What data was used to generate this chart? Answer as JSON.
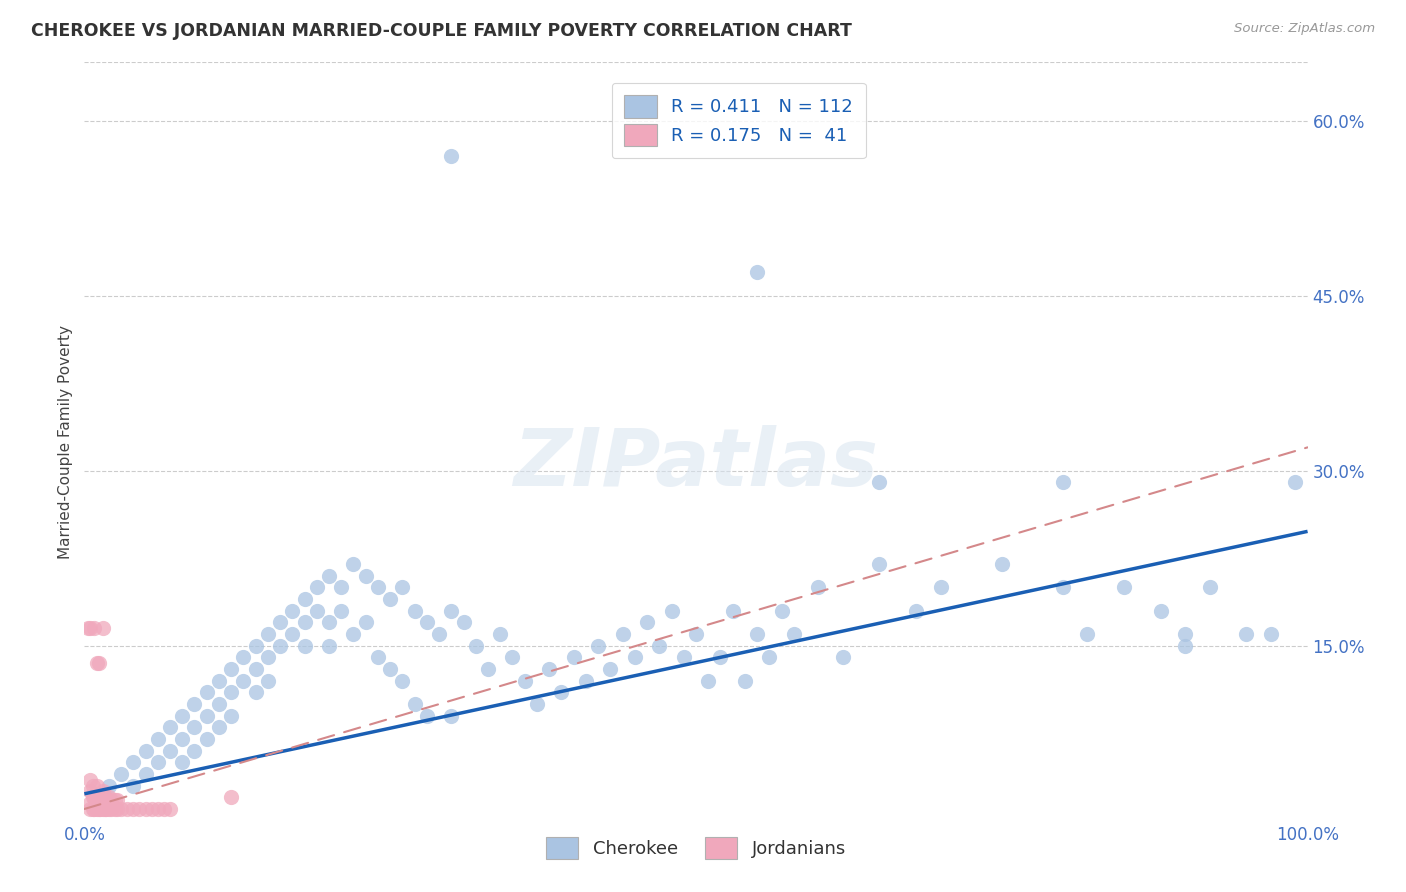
{
  "title": "CHEROKEE VS JORDANIAN MARRIED-COUPLE FAMILY POVERTY CORRELATION CHART",
  "source": "Source: ZipAtlas.com",
  "ylabel": "Married-Couple Family Poverty",
  "xlim": [
    0,
    1.0
  ],
  "ylim": [
    0,
    0.65
  ],
  "xticks": [
    0.0,
    0.2,
    0.4,
    0.6,
    0.8,
    1.0
  ],
  "xticklabels": [
    "0.0%",
    "",
    "",
    "",
    "",
    "100.0%"
  ],
  "yticks_right": [
    0.15,
    0.3,
    0.45,
    0.6
  ],
  "yticklabels_right": [
    "15.0%",
    "30.0%",
    "45.0%",
    "60.0%"
  ],
  "cherokee_color": "#aac4e2",
  "jordanian_color": "#f0a8bc",
  "cherokee_line_color": "#1a5fb4",
  "jordanian_line_color": "#d4888a",
  "tick_color": "#4472c4",
  "watermark_text": "ZIPatlas",
  "legend_cherokee_label": "R = 0.411   N = 112",
  "legend_jordanian_label": "R = 0.175   N =  41",
  "bottom_legend_cherokee": "Cherokee",
  "bottom_legend_jordanian": "Jordanians",
  "cherokee_x": [
    0.02,
    0.03,
    0.04,
    0.04,
    0.05,
    0.05,
    0.06,
    0.06,
    0.07,
    0.07,
    0.08,
    0.08,
    0.08,
    0.09,
    0.09,
    0.09,
    0.1,
    0.1,
    0.1,
    0.11,
    0.11,
    0.11,
    0.12,
    0.12,
    0.12,
    0.13,
    0.13,
    0.14,
    0.14,
    0.14,
    0.15,
    0.15,
    0.15,
    0.16,
    0.16,
    0.17,
    0.17,
    0.18,
    0.18,
    0.18,
    0.19,
    0.19,
    0.2,
    0.2,
    0.2,
    0.21,
    0.21,
    0.22,
    0.22,
    0.23,
    0.23,
    0.24,
    0.24,
    0.25,
    0.25,
    0.26,
    0.26,
    0.27,
    0.27,
    0.28,
    0.28,
    0.29,
    0.3,
    0.3,
    0.31,
    0.32,
    0.33,
    0.34,
    0.35,
    0.36,
    0.37,
    0.38,
    0.39,
    0.4,
    0.41,
    0.42,
    0.43,
    0.44,
    0.45,
    0.46,
    0.47,
    0.48,
    0.49,
    0.5,
    0.51,
    0.52,
    0.53,
    0.54,
    0.55,
    0.56,
    0.57,
    0.58,
    0.6,
    0.62,
    0.65,
    0.68,
    0.7,
    0.75,
    0.8,
    0.82,
    0.85,
    0.88,
    0.9,
    0.92,
    0.95,
    0.97,
    0.99,
    0.3,
    0.55,
    0.65,
    0.8,
    0.9
  ],
  "cherokee_y": [
    0.03,
    0.04,
    0.05,
    0.03,
    0.06,
    0.04,
    0.07,
    0.05,
    0.08,
    0.06,
    0.09,
    0.07,
    0.05,
    0.1,
    0.08,
    0.06,
    0.11,
    0.09,
    0.07,
    0.12,
    0.1,
    0.08,
    0.13,
    0.11,
    0.09,
    0.14,
    0.12,
    0.15,
    0.13,
    0.11,
    0.16,
    0.14,
    0.12,
    0.17,
    0.15,
    0.18,
    0.16,
    0.19,
    0.17,
    0.15,
    0.2,
    0.18,
    0.21,
    0.17,
    0.15,
    0.2,
    0.18,
    0.22,
    0.16,
    0.21,
    0.17,
    0.2,
    0.14,
    0.19,
    0.13,
    0.2,
    0.12,
    0.18,
    0.1,
    0.17,
    0.09,
    0.16,
    0.18,
    0.09,
    0.17,
    0.15,
    0.13,
    0.16,
    0.14,
    0.12,
    0.1,
    0.13,
    0.11,
    0.14,
    0.12,
    0.15,
    0.13,
    0.16,
    0.14,
    0.17,
    0.15,
    0.18,
    0.14,
    0.16,
    0.12,
    0.14,
    0.18,
    0.12,
    0.16,
    0.14,
    0.18,
    0.16,
    0.2,
    0.14,
    0.22,
    0.18,
    0.2,
    0.22,
    0.2,
    0.16,
    0.2,
    0.18,
    0.16,
    0.2,
    0.16,
    0.16,
    0.29,
    0.57,
    0.47,
    0.29,
    0.29,
    0.15
  ],
  "jordanian_x": [
    0.005,
    0.005,
    0.005,
    0.005,
    0.007,
    0.007,
    0.007,
    0.008,
    0.008,
    0.01,
    0.01,
    0.01,
    0.012,
    0.012,
    0.013,
    0.013,
    0.015,
    0.015,
    0.015,
    0.017,
    0.017,
    0.018,
    0.018,
    0.02,
    0.02,
    0.022,
    0.022,
    0.025,
    0.025,
    0.027,
    0.027,
    0.03,
    0.035,
    0.04,
    0.045,
    0.05,
    0.055,
    0.06,
    0.065,
    0.07,
    0.12
  ],
  "jordanian_y": [
    0.01,
    0.015,
    0.025,
    0.035,
    0.01,
    0.02,
    0.03,
    0.01,
    0.02,
    0.01,
    0.02,
    0.03,
    0.01,
    0.02,
    0.01,
    0.02,
    0.01,
    0.017,
    0.025,
    0.01,
    0.02,
    0.01,
    0.018,
    0.01,
    0.02,
    0.01,
    0.018,
    0.01,
    0.018,
    0.01,
    0.018,
    0.01,
    0.01,
    0.01,
    0.01,
    0.01,
    0.01,
    0.01,
    0.01,
    0.01,
    0.02
  ],
  "jordanian_high_x": [
    0.005,
    0.008,
    0.01,
    0.012,
    0.015,
    0.003
  ],
  "jordanian_high_y": [
    0.165,
    0.165,
    0.135,
    0.135,
    0.165,
    0.165
  ]
}
